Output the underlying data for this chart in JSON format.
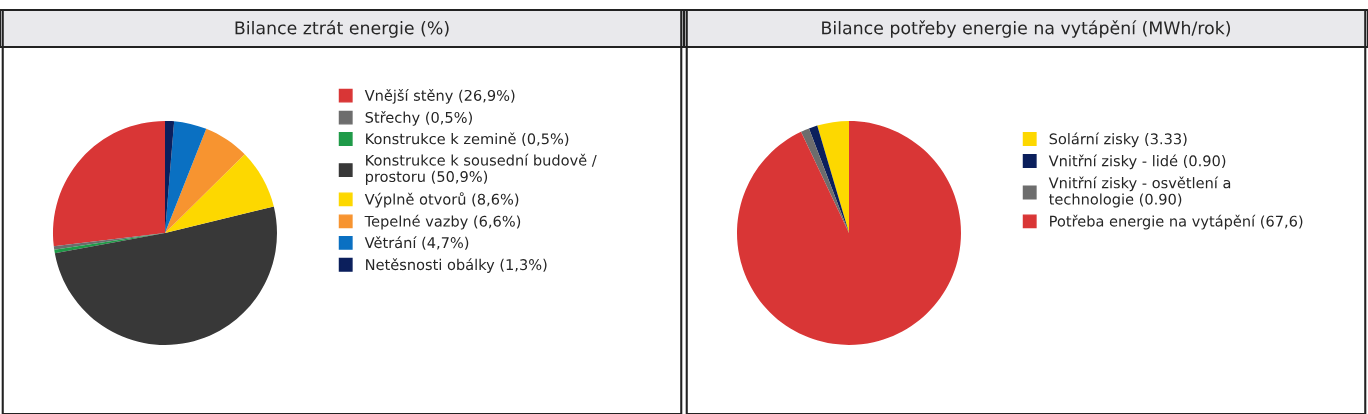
{
  "chart_data": [
    {
      "type": "pie",
      "title": "Bilance ztrát energie (%)",
      "legend": "right",
      "categories": [
        "Vnější stěny (26,9%)",
        "Střechy (0,5%)",
        "Konstrukce k zemině (0,5%)",
        "Konstrukce k sousední budově /\nprostoru (50,9%)",
        "Výplně otvorů (8,6%)",
        "Tepelné vazby (6,6%)",
        "Větrání (4,7%)",
        "Netěsnosti obálky (1,3%)"
      ],
      "values": [
        26.9,
        0.5,
        0.5,
        50.9,
        8.6,
        6.6,
        4.7,
        1.3
      ],
      "colors": [
        "#d93636",
        "#6d6d6d",
        "#1f9a48",
        "#383838",
        "#fdd800",
        "#f79430",
        "#0a70c2",
        "#0b1f5c"
      ]
    },
    {
      "type": "pie",
      "title": "Bilance potřeby energie na vytápění (MWh/rok)",
      "legend": "right",
      "categories": [
        "Solární zisky (3.33)",
        "Vnitřní zisky - lidé (0.90)",
        "Vnitřní zisky - osvětlení a\ntechnologie (0.90)",
        "Potřeba energie na vytápění (67,6)"
      ],
      "values": [
        3.33,
        0.9,
        0.9,
        67.6
      ],
      "colors": [
        "#fdd800",
        "#0b1f5c",
        "#6d6d6d",
        "#d93636"
      ]
    }
  ]
}
